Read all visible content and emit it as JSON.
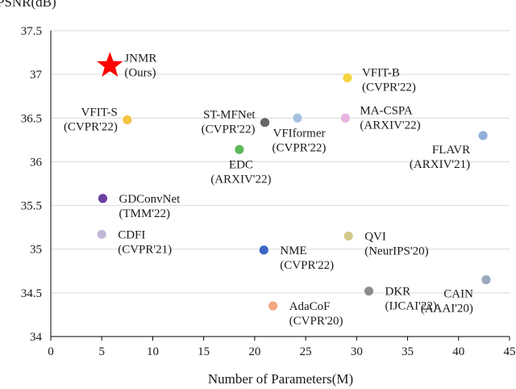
{
  "chart_data": {
    "type": "scatter",
    "title": "",
    "xlabel": "Number of Parameters(M)",
    "ylabel": "PSNR(dB)",
    "xlim": [
      0,
      45
    ],
    "ylim": [
      34,
      37.5
    ],
    "x_ticks": [
      0,
      5,
      10,
      15,
      20,
      25,
      30,
      35,
      40,
      45
    ],
    "y_ticks": [
      34,
      34.5,
      35,
      35.5,
      36,
      36.5,
      37,
      37.5
    ],
    "y_tick_labels": [
      "34",
      "34.5",
      "35",
      "35.5",
      "36",
      "36.5",
      "37",
      "37.5"
    ],
    "grid": "horizontal",
    "points": [
      {
        "name": "JNMR",
        "venue": "(Ours)",
        "x": 5.8,
        "y": 37.1,
        "marker": "star",
        "color": "#ff0000",
        "label_pos": "right"
      },
      {
        "name": "VFIT-S",
        "venue": "(CVPR'22)",
        "x": 7.5,
        "y": 36.48,
        "marker": "circle",
        "color": "#f5c342",
        "label_pos": "left"
      },
      {
        "name": "GDConvNet",
        "venue": "(TMM'22)",
        "x": 5.1,
        "y": 35.58,
        "marker": "circle",
        "color": "#6b3fa0",
        "label_pos": "right-below"
      },
      {
        "name": "CDFI",
        "venue": "(CVPR'21)",
        "x": 5.0,
        "y": 35.17,
        "marker": "circle",
        "color": "#c2b8d6",
        "label_pos": "right-below"
      },
      {
        "name": "EDC",
        "venue": "(ARXIV'22)",
        "x": 18.5,
        "y": 36.14,
        "marker": "circle",
        "color": "#5cb85c",
        "label_pos": "below"
      },
      {
        "name": "ST-MFNet",
        "venue": "(CVPR'22)",
        "x": 21.0,
        "y": 36.45,
        "marker": "circle",
        "color": "#666666",
        "label_pos": "left"
      },
      {
        "name": "NME",
        "venue": "(CVPR'22)",
        "x": 20.9,
        "y": 34.99,
        "marker": "circle",
        "color": "#3a66c4",
        "label_pos": "right-below"
      },
      {
        "name": "AdaCoF",
        "venue": "(CVPR'20)",
        "x": 21.8,
        "y": 34.35,
        "marker": "circle",
        "color": "#f4a582",
        "label_pos": "right-below"
      },
      {
        "name": "VFIformer",
        "venue": "(CVPR'22)",
        "x": 24.2,
        "y": 36.5,
        "marker": "circle",
        "color": "#a8c0e0",
        "label_pos": "below"
      },
      {
        "name": "VFIT-B",
        "venue": "(CVPR'22)",
        "x": 29.1,
        "y": 36.96,
        "marker": "circle",
        "color": "#f5d442",
        "label_pos": "right-above"
      },
      {
        "name": "MA-CSPA",
        "venue": "(ARXIV'22)",
        "x": 28.9,
        "y": 36.5,
        "marker": "circle",
        "color": "#e8b4e0",
        "label_pos": "right"
      },
      {
        "name": "QVI",
        "venue": "(NeurIPS'20)",
        "x": 29.2,
        "y": 35.15,
        "marker": "circle",
        "color": "#d4c98a",
        "label_pos": "right-below"
      },
      {
        "name": "DKR",
        "venue": "(IJCAI'22)",
        "x": 31.2,
        "y": 34.52,
        "marker": "circle",
        "color": "#8c8c8c",
        "label_pos": "right-below"
      },
      {
        "name": "FLAVR",
        "venue": "(ARXIV'21)",
        "x": 42.4,
        "y": 36.3,
        "marker": "circle",
        "color": "#8fb0d8",
        "label_pos": "left-below"
      },
      {
        "name": "CAIN",
        "venue": "(AAAI'20)",
        "x": 42.7,
        "y": 34.65,
        "marker": "circle",
        "color": "#9aaabb",
        "label_pos": "left-below"
      }
    ]
  }
}
